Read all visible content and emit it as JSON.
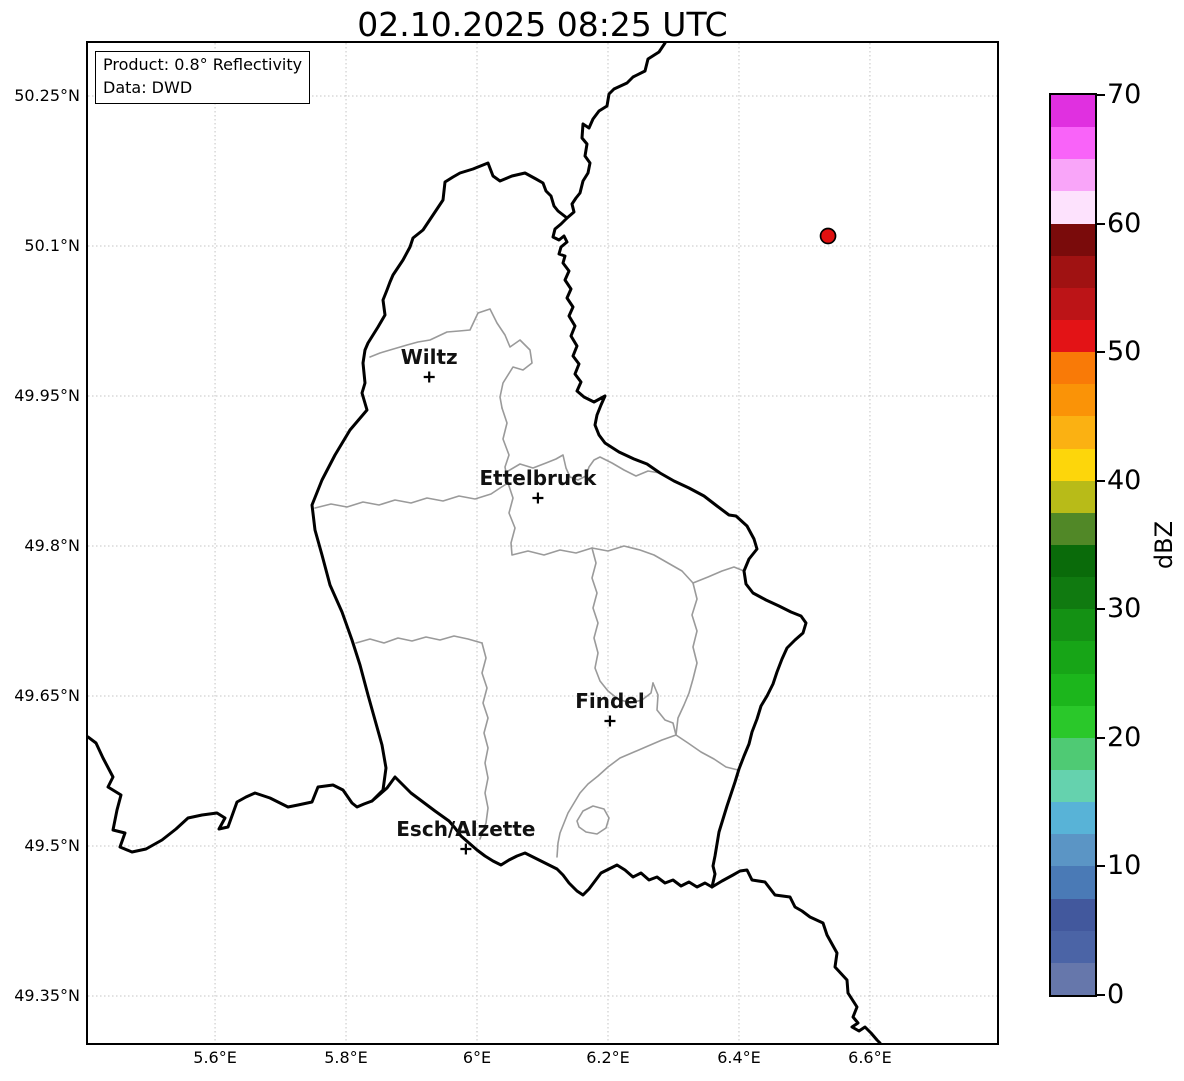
{
  "title": "02.10.2025 08:25 UTC",
  "annotation": {
    "line1": "Product: 0.8° Reflectivity",
    "line2": "Data: DWD"
  },
  "x_axis": {
    "ticks": [
      {
        "label": "5.6°E",
        "value": 5.6
      },
      {
        "label": "5.8°E",
        "value": 5.8
      },
      {
        "label": "6°E",
        "value": 6.0
      },
      {
        "label": "6.2°E",
        "value": 6.2
      },
      {
        "label": "6.4°E",
        "value": 6.4
      },
      {
        "label": "6.6°E",
        "value": 6.6
      }
    ]
  },
  "y_axis": {
    "ticks": [
      {
        "label": "50.25°N",
        "value": 50.25
      },
      {
        "label": "50.1°N",
        "value": 50.1
      },
      {
        "label": "49.95°N",
        "value": 49.95
      },
      {
        "label": "49.8°N",
        "value": 49.8
      },
      {
        "label": "49.65°N",
        "value": 49.65
      },
      {
        "label": "49.5°N",
        "value": 49.5
      },
      {
        "label": "49.35°N",
        "value": 49.35
      }
    ]
  },
  "map_extent": {
    "lon_min": 5.406,
    "lon_max": 6.794,
    "lat_min": 49.303,
    "lat_max": 50.303
  },
  "cities": [
    {
      "name": "Wiltz",
      "lon": 5.927,
      "lat": 49.969
    },
    {
      "name": "Ettelbruck",
      "lon": 6.093,
      "lat": 49.848
    },
    {
      "name": "Findel",
      "lon": 6.203,
      "lat": 49.625
    },
    {
      "name": "Esch/Alzette",
      "lon": 5.983,
      "lat": 49.497
    }
  ],
  "radar_marker": {
    "lon": 6.536,
    "lat": 50.11,
    "color": "#e01010"
  },
  "colorbar": {
    "label": "dBZ",
    "tick_values": [
      0,
      10,
      20,
      30,
      40,
      50,
      60,
      70
    ],
    "level_min": 0,
    "level_max": 70,
    "level_step": 2.5,
    "colors_bottom_to_top": [
      "#6677ab",
      "#4b64a6",
      "#42589d",
      "#4a7ab6",
      "#5b95c5",
      "#58b3d7",
      "#65d2ae",
      "#4fca74",
      "#2ac82a",
      "#1cb61c",
      "#17a517",
      "#149114",
      "#107a10",
      "#0a6b0a",
      "#518827",
      "#b8bb18",
      "#fdd60b",
      "#fbb112",
      "#fa9307",
      "#f97a07",
      "#e31316",
      "#bc1417",
      "#a01212",
      "#7a0b0b",
      "#fde2fd",
      "#f9a5f9",
      "#f963f9",
      "#e030e0"
    ]
  },
  "style_colors": {
    "grid": "#c4c4c4",
    "canton_border": "#9a9a9a",
    "country_border": "#000000"
  }
}
